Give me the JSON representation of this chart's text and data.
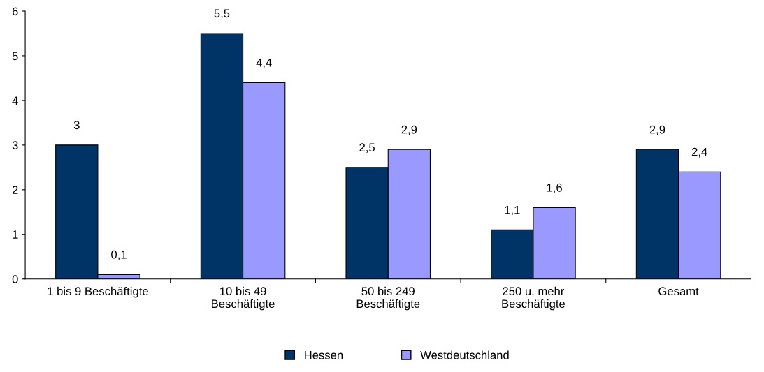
{
  "chart_data": {
    "type": "bar",
    "categories": [
      "1 bis 9 Beschäftigte",
      "10 bis 49\nBeschäftigte",
      "50 bis 249\nBeschäftigte",
      "250 u. mehr\nBeschäftigte",
      "Gesamt"
    ],
    "series": [
      {
        "name": "Hessen",
        "color": "#003366",
        "values": [
          3,
          5.5,
          2.5,
          1.1,
          2.9
        ],
        "value_labels": [
          "3",
          "5,5",
          "2,5",
          "1,1",
          "2,9"
        ]
      },
      {
        "name": "Westdeutschland",
        "color": "#9999ff",
        "values": [
          0.1,
          4.4,
          2.9,
          1.6,
          2.4
        ],
        "value_labels": [
          "0,1",
          "4,4",
          "2,9",
          "1,6",
          "2,4"
        ]
      }
    ],
    "ylim": [
      0,
      6
    ],
    "yticks": [
      0,
      1,
      2,
      3,
      4,
      5,
      6
    ],
    "grid": false,
    "legend": "bottom"
  }
}
